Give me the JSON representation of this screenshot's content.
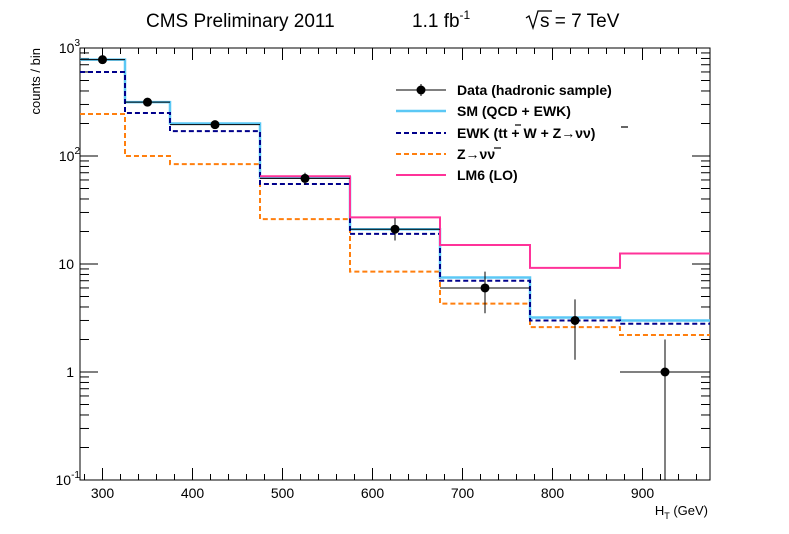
{
  "chart_data": {
    "type": "step-histogram",
    "title": {
      "experiment": "CMS Preliminary 2011",
      "lumi_value": "1.1 fb",
      "lumi_exp": "-1",
      "sqrts_label": "s = 7 TeV"
    },
    "xlabel": {
      "main": "H",
      "sub": "T",
      "unit": " (GeV)"
    },
    "ylabel": "counts / bin",
    "xlim": [
      275,
      975
    ],
    "ylim": [
      0.1,
      1000
    ],
    "log_y": true,
    "x_ticks": [
      "300",
      "400",
      "500",
      "600",
      "700",
      "800",
      "900"
    ],
    "y_ticks": [
      {
        "value": 0.1,
        "base": "10",
        "exp": "-1"
      },
      {
        "value": 1,
        "base": "1",
        "exp": ""
      },
      {
        "value": 10,
        "base": "10",
        "exp": ""
      },
      {
        "value": 100,
        "base": "10",
        "exp": "2"
      },
      {
        "value": 1000,
        "base": "10",
        "exp": "3"
      }
    ],
    "bin_edges": [
      275,
      325,
      375,
      475,
      575,
      675,
      775,
      875,
      975
    ],
    "series": [
      {
        "name": "SM (QCD + EWK)",
        "color": "#5bc8f5",
        "style": "solid",
        "values": [
          780,
          315,
          200,
          63,
          21,
          7.5,
          3.2,
          3.0
        ]
      },
      {
        "name": "EWK (tt + W + Z→νν)",
        "color": "#00008b",
        "style": "dashed",
        "values": [
          600,
          250,
          170,
          55,
          19,
          7.0,
          3.0,
          2.8
        ]
      },
      {
        "name": "Z→νν",
        "color": "#ff7f0e",
        "style": "dashed",
        "values": [
          245,
          100,
          84,
          26,
          8.5,
          4.3,
          2.6,
          2.2
        ]
      },
      {
        "name": "LM6 (LO)",
        "color": "#ff3399",
        "style": "solid",
        "values": [
          null,
          null,
          null,
          65,
          27,
          15,
          9.2,
          12.5
        ]
      }
    ],
    "data_points": {
      "name": "Data (hadronic sample)",
      "points": [
        {
          "x": 300,
          "y": 780,
          "xerr": 25,
          "ylo": 755,
          "yhi": 805
        },
        {
          "x": 350,
          "y": 315,
          "xerr": 25,
          "ylo": 298,
          "yhi": 333
        },
        {
          "x": 425,
          "y": 195,
          "xerr": 50,
          "ylo": 182,
          "yhi": 209
        },
        {
          "x": 525,
          "y": 62,
          "xerr": 50,
          "ylo": 54,
          "yhi": 70
        },
        {
          "x": 625,
          "y": 21,
          "xerr": 50,
          "ylo": 16.5,
          "yhi": 26.5
        },
        {
          "x": 725,
          "y": 6,
          "xerr": 50,
          "ylo": 3.5,
          "yhi": 8.5
        },
        {
          "x": 825,
          "y": 3,
          "xerr": 0,
          "ylo": 1.3,
          "yhi": 4.7
        },
        {
          "x": 925,
          "y": 1,
          "xerr": 50,
          "ylo": 0.1,
          "yhi": 2.0
        }
      ]
    },
    "legend": {
      "position": "top-right",
      "entries": [
        {
          "label": "Data (hadronic sample)",
          "kind": "marker",
          "color": "#000000"
        },
        {
          "label": "SM (QCD + EWK)",
          "kind": "line",
          "color": "#5bc8f5",
          "style": "solid"
        },
        {
          "label": "EWK (tt + W + Z→νν)",
          "kind": "line",
          "color": "#00008b",
          "style": "dashed"
        },
        {
          "label": "Z→νν",
          "kind": "line",
          "color": "#ff7f0e",
          "style": "dashed"
        },
        {
          "label": "LM6 (LO)",
          "kind": "line",
          "color": "#ff3399",
          "style": "solid"
        }
      ]
    }
  }
}
